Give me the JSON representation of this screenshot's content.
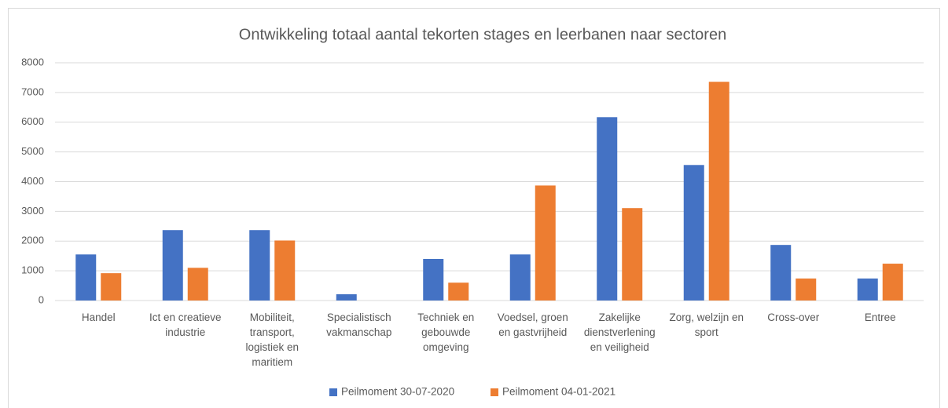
{
  "chart_data": {
    "type": "bar",
    "title": "Ontwikkeling totaal aantal tekorten stages en leerbanen naar sectoren",
    "categories": [
      "Handel",
      "Ict en creatieve industrie",
      "Mobiliteit, transport, logistiek en maritiem",
      "Specialistisch vakmanschap",
      "Techniek en gebouwde omgeving",
      "Voedsel, groen en gastvrijheid",
      "Zakelijke dienstverlening en veiligheid",
      "Zorg, welzijn en sport",
      "Cross-over",
      "Entree"
    ],
    "series": [
      {
        "name": "Peilmoment 30-07-2020",
        "color": "#4472c4",
        "values": [
          1550,
          2370,
          2370,
          210,
          1400,
          1550,
          6170,
          4560,
          1870,
          740
        ]
      },
      {
        "name": "Peilmoment 04-01-2021",
        "color": "#ed7d31",
        "values": [
          920,
          1100,
          2020,
          0,
          600,
          3870,
          3110,
          7360,
          740,
          1240
        ]
      }
    ],
    "ylim": [
      0,
      8000
    ],
    "yticks": [
      0,
      1000,
      2000,
      3000,
      4000,
      5000,
      6000,
      7000,
      8000
    ],
    "grid": true,
    "legend": "bottom"
  }
}
